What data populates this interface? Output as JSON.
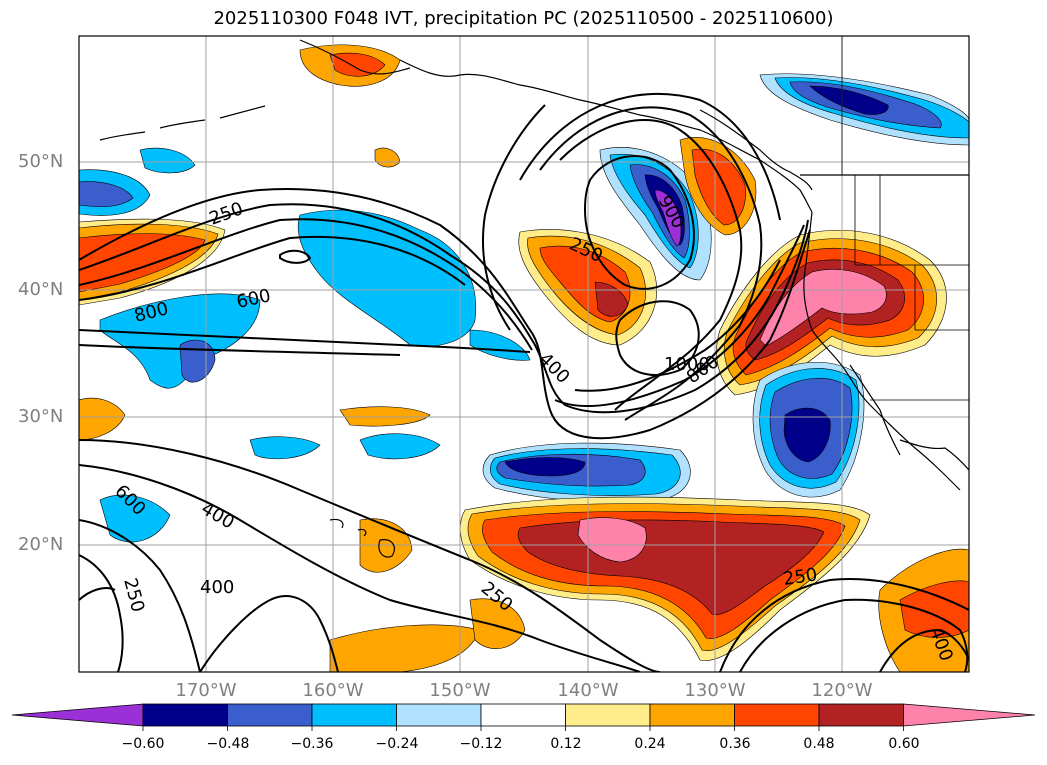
{
  "title": "2025110300 F048 IVT, precipitation PC (2025110500 - 2025110600)",
  "lat_labels": [
    "50°N",
    "40°N",
    "30°N",
    "20°N"
  ],
  "lon_labels": [
    "170°W",
    "160°W",
    "150°W",
    "140°W",
    "130°W",
    "120°W"
  ],
  "contour_labels": [
    "250",
    "600",
    "800",
    "900",
    "250",
    "400",
    "1000",
    "800",
    "600",
    "400",
    "250",
    "400",
    "250",
    "250",
    "400"
  ],
  "colorbar": {
    "ticks": [
      "−0.60",
      "−0.48",
      "−0.36",
      "−0.24",
      "−0.12",
      "0.12",
      "0.24",
      "0.36",
      "0.48",
      "0.60"
    ],
    "colors": [
      "#9b30d6",
      "#00008b",
      "#3a5fcd",
      "#00bfff",
      "#b0e2ff",
      "#ffffff",
      "#ffec8b",
      "#ffa500",
      "#ff4500",
      "#b22222",
      "#ff82ab"
    ]
  }
}
